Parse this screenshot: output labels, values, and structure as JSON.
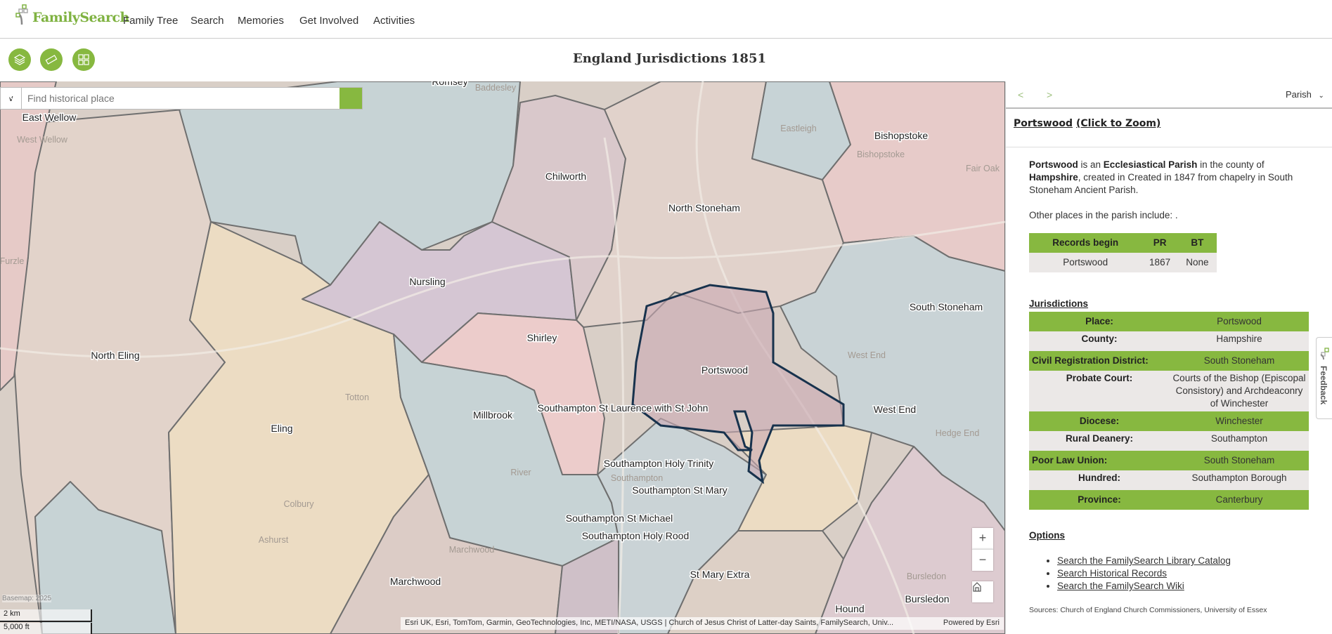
{
  "header": {
    "logo": "FamilySearch",
    "nav": [
      "Family Tree",
      "Search",
      "Memories",
      "Get Involved",
      "Activities"
    ]
  },
  "toolbar": {
    "title": "England Jurisdictions 1851",
    "buttons": [
      "layers-icon",
      "measure-icon",
      "grid-icon"
    ]
  },
  "search": {
    "placeholder": "Find historical place",
    "value": ""
  },
  "map": {
    "labels": [
      "Romsey",
      "East Wellow",
      "Chilworth",
      "North Stoneham",
      "Bishopstoke",
      "Nursling",
      "Shirley",
      "South Stoneham",
      "North Eling",
      "Portswood",
      "West End",
      "Millbrook",
      "Southampton St Laurence with St John",
      "Eling",
      "Southampton Holy Trinity",
      "Southampton St Mary",
      "Southampton St Michael",
      "Southampton Holy Rood",
      "Marchwood",
      "St Mary Extra",
      "Bursledon",
      "Hound"
    ],
    "basemap_labels": [
      "Baddesley",
      "West Wellow",
      "Eastleigh",
      "Bishopstoke",
      "Fair Oak",
      "Furzle",
      "West End",
      "Totton",
      "Hedge End",
      "Colbury",
      "River",
      "Southampton",
      "Ashurst",
      "Marchwood",
      "Bursledon"
    ],
    "zoom_in": "+",
    "zoom_out": "−",
    "basemap_note": "Basemap: 2025",
    "scale_km": "2 km",
    "scale_ft": "5,000 ft",
    "attribution": "Esri UK, Esri, TomTom, Garmin, GeoTechnologies, Inc, METI/NASA, USGS | Church of Jesus Christ of Latter-day Saints, FamilySearch, Univ...",
    "powered": "Powered by Esri",
    "selected_outline": "#17324d"
  },
  "panel": {
    "prev": "<",
    "next": ">",
    "level": "Parish",
    "place": "Portswood",
    "zoom_link": "(Click to Zoom)",
    "desc": {
      "name": "Portswood",
      "t1": " is an ",
      "type": "Ecclesiastical Parish",
      "t2": " in the county of ",
      "county": "Hampshire",
      "t3": ", created in Created in 1847 from chapelry in South Stoneham Ancient Parish."
    },
    "other": "Other places in the parish include: .",
    "records": {
      "headers": [
        "Records begin",
        "PR",
        "BT"
      ],
      "row": [
        "Portswood",
        "1867",
        "None"
      ]
    },
    "jurisdictions_title": "Jurisdictions",
    "jurisdictions": [
      [
        "Place:",
        "Portswood"
      ],
      [
        "County:",
        "Hampshire"
      ],
      [
        "Civil Registration District:",
        "South Stoneham"
      ],
      [
        "Probate Court:",
        "Courts of the Bishop (Episcopal Consistory) and Archdeaconry of Winchester"
      ],
      [
        "Diocese:",
        "Winchester"
      ],
      [
        "Rural Deanery:",
        "Southampton"
      ],
      [
        "Poor Law Union:",
        "South Stoneham"
      ],
      [
        "Hundred:",
        "Southampton Borough"
      ],
      [
        "Province:",
        "Canterbury"
      ]
    ],
    "options_title": "Options",
    "options": [
      "Search the FamilySearch Library Catalog",
      "Search Historical Records",
      "Search the FamilySearch Wiki"
    ],
    "sources": "Sources: Church of England Church Commissioners, University of Essex"
  },
  "feedback": "Feedback",
  "colors": {
    "accent": "#87b840",
    "row_alt": "#ebe8e7"
  }
}
